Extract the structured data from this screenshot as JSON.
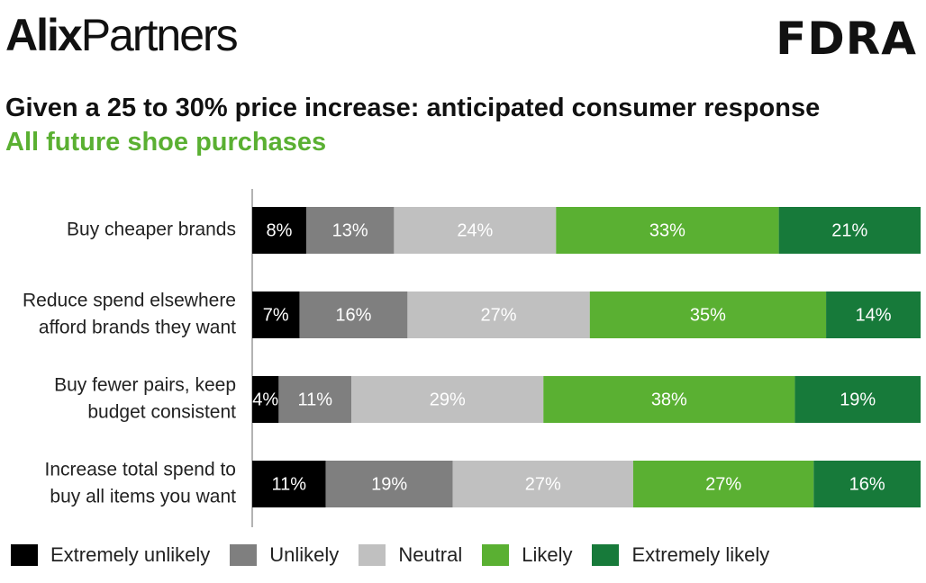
{
  "logos": {
    "left_bold": "Alix",
    "left_regular": "Partners",
    "right": "FDRA"
  },
  "title": "Given a 25 to 30% price increase: anticipated consumer response",
  "subtitle": "All future shoe purchases",
  "colors": {
    "extremely_unlikely": "#000000",
    "unlikely": "#7f7f7f",
    "neutral": "#c0c0c0",
    "likely": "#5ab032",
    "extremely_likely": "#177a3a",
    "subtitle": "#5ab032"
  },
  "chart_data": {
    "type": "bar",
    "orientation": "horizontal",
    "stacked": true,
    "percent_scale": true,
    "categories": [
      [
        "Buy cheaper brands"
      ],
      [
        "Reduce spend elsewhere",
        "afford brands they want"
      ],
      [
        "Buy fewer pairs, keep",
        "budget consistent"
      ],
      [
        "Increase total spend to",
        "buy all items you want"
      ]
    ],
    "series": [
      {
        "name": "Extremely unlikely",
        "color": "#000000",
        "values": [
          8,
          7,
          4,
          11
        ],
        "labels": [
          "8%",
          "7%",
          "4%",
          "11%"
        ]
      },
      {
        "name": "Unlikely",
        "color": "#7f7f7f",
        "values": [
          13,
          16,
          11,
          19
        ],
        "labels": [
          "13%",
          "16%",
          "11%",
          "19%"
        ]
      },
      {
        "name": "Neutral",
        "color": "#c0c0c0",
        "values": [
          24,
          27,
          29,
          27
        ],
        "labels": [
          "24%",
          "27%",
          "29%",
          "27%"
        ]
      },
      {
        "name": "Likely",
        "color": "#5ab032",
        "values": [
          33,
          35,
          38,
          27
        ],
        "labels": [
          "33%",
          "35%",
          "38%",
          "27%"
        ]
      },
      {
        "name": "Extremely likely",
        "color": "#177a3a",
        "values": [
          21,
          14,
          19,
          16
        ],
        "labels": [
          "21%",
          "14%",
          "19%",
          "16%"
        ]
      }
    ],
    "legend_position": "bottom",
    "grid": false
  }
}
